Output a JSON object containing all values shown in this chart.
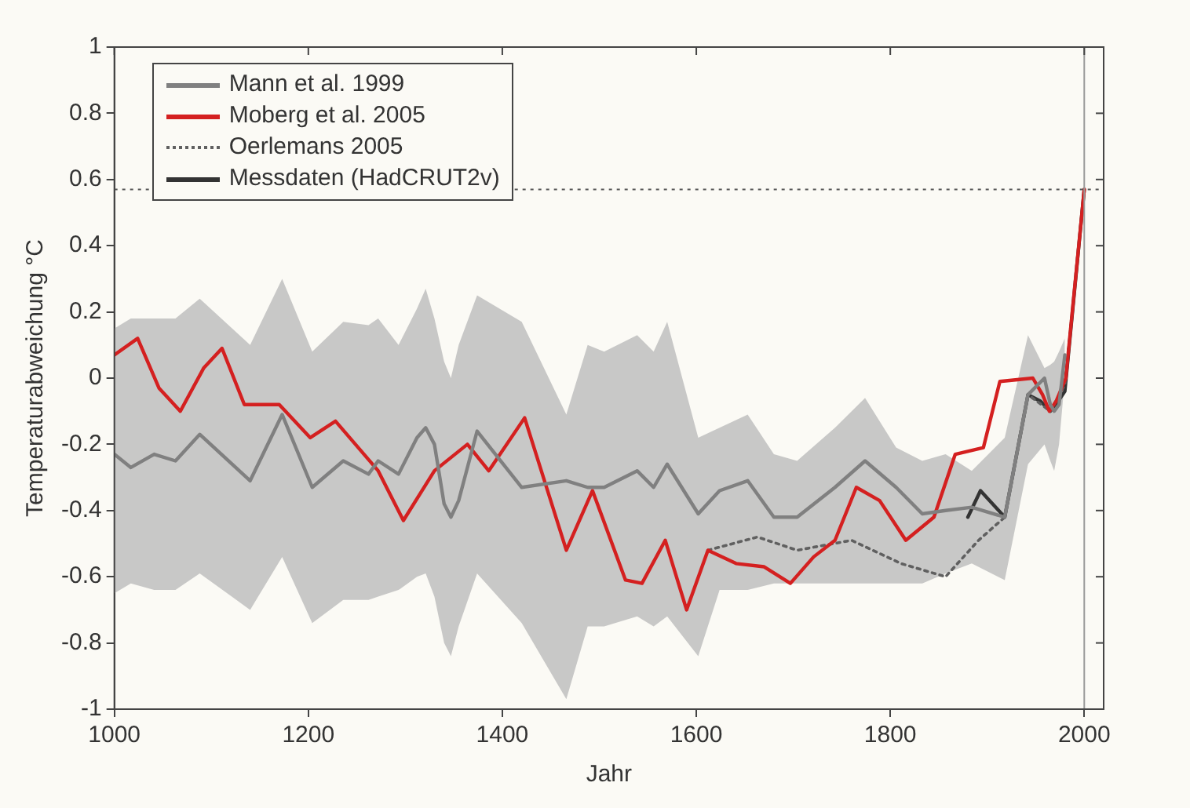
{
  "chart_data": {
    "type": "line",
    "xlabel": "Jahr",
    "ylabel": "Temperaturabweichung °C",
    "xlim": [
      1000,
      2020
    ],
    "ylim": [
      -1,
      1
    ],
    "xticks": [
      1000,
      1200,
      1400,
      1600,
      1800,
      2000
    ],
    "yticks": [
      -1,
      -0.8,
      -0.6,
      -0.4,
      -0.2,
      0,
      0.2,
      0.4,
      0.6,
      0.8,
      1
    ],
    "grid": false,
    "legend": "top left",
    "marker": "none",
    "ref_lines": [
      {
        "axis": "y",
        "value": 0.57,
        "color": "#555555",
        "line_style": "dotted"
      },
      {
        "axis": "x",
        "value": 2000,
        "color": "#999999",
        "line_style": "solid"
      }
    ],
    "series": [
      {
        "name": "Mann et al. 1999",
        "color": "#808080",
        "line_style": "solid",
        "x": [
          1000,
          1017,
          1041,
          1063,
          1088,
          1140,
          1173,
          1204,
          1236,
          1262,
          1272,
          1293,
          1312,
          1321,
          1330,
          1340,
          1347,
          1355,
          1374,
          1420,
          1466,
          1488,
          1505,
          1539,
          1556,
          1570,
          1602,
          1624,
          1653,
          1680,
          1704,
          1743,
          1774,
          1806,
          1833,
          1857,
          1884,
          1918,
          1942,
          1959,
          1965,
          1969,
          1974,
          1980
        ],
        "values": [
          -0.23,
          -0.27,
          -0.23,
          -0.25,
          -0.17,
          -0.31,
          -0.11,
          -0.33,
          -0.25,
          -0.29,
          -0.25,
          -0.29,
          -0.18,
          -0.15,
          -0.2,
          -0.38,
          -0.42,
          -0.37,
          -0.16,
          -0.33,
          -0.31,
          -0.33,
          -0.33,
          -0.28,
          -0.33,
          -0.26,
          -0.41,
          -0.34,
          -0.31,
          -0.42,
          -0.42,
          -0.33,
          -0.25,
          -0.33,
          -0.41,
          -0.4,
          -0.39,
          -0.42,
          -0.05,
          0,
          -0.08,
          -0.1,
          -0.08,
          0.07
        ],
        "upper": [
          0.15,
          0.18,
          0.18,
          0.18,
          0.24,
          0.1,
          0.3,
          0.08,
          0.17,
          0.16,
          0.18,
          0.1,
          0.21,
          0.27,
          0.18,
          0.05,
          0,
          0.1,
          0.25,
          0.17,
          -0.11,
          0.1,
          0.08,
          0.13,
          0.08,
          0.17,
          -0.18,
          -0.15,
          -0.11,
          -0.23,
          -0.25,
          -0.15,
          -0.06,
          -0.21,
          -0.25,
          -0.23,
          -0.28,
          -0.18,
          0.13,
          0.03,
          0.04,
          0.05,
          0.08,
          0.12
        ],
        "lower": [
          -0.65,
          -0.62,
          -0.64,
          -0.64,
          -0.59,
          -0.7,
          -0.54,
          -0.74,
          -0.67,
          -0.67,
          -0.66,
          -0.64,
          -0.6,
          -0.59,
          -0.66,
          -0.8,
          -0.84,
          -0.75,
          -0.59,
          -0.74,
          -0.97,
          -0.75,
          -0.75,
          -0.72,
          -0.75,
          -0.72,
          -0.84,
          -0.64,
          -0.64,
          -0.62,
          -0.62,
          -0.62,
          -0.62,
          -0.62,
          -0.62,
          -0.59,
          -0.56,
          -0.61,
          -0.26,
          -0.2,
          -0.25,
          -0.28,
          -0.2,
          0
        ]
      },
      {
        "name": "Moberg et al. 2005",
        "color": "#d42020",
        "line_style": "solid",
        "x": [
          1000,
          1024,
          1046,
          1068,
          1092,
          1111,
          1134,
          1170,
          1202,
          1228,
          1272,
          1298,
          1330,
          1364,
          1386,
          1423,
          1466,
          1493,
          1527,
          1544,
          1568,
          1590,
          1612,
          1641,
          1670,
          1697,
          1721,
          1743,
          1765,
          1789,
          1816,
          1845,
          1867,
          1896,
          1913,
          1947,
          1957,
          1964,
          1971,
          1981,
          2000
        ],
        "values": [
          0.07,
          0.12,
          -0.03,
          -0.1,
          0.03,
          0.09,
          -0.08,
          -0.08,
          -0.18,
          -0.13,
          -0.28,
          -0.43,
          -0.28,
          -0.2,
          -0.28,
          -0.12,
          -0.52,
          -0.34,
          -0.61,
          -0.62,
          -0.49,
          -0.7,
          -0.52,
          -0.56,
          -0.57,
          -0.62,
          -0.54,
          -0.49,
          -0.33,
          -0.37,
          -0.49,
          -0.42,
          -0.23,
          -0.21,
          -0.01,
          0,
          -0.05,
          -0.1,
          -0.07,
          0,
          0.57
        ]
      },
      {
        "name": "Oerlemans 2005",
        "color": "#606060",
        "line_style": "dotted",
        "x": [
          1612,
          1663,
          1704,
          1760,
          1811,
          1857,
          1891,
          1918,
          1942,
          1965,
          1980,
          2000
        ],
        "values": [
          -0.52,
          -0.48,
          -0.52,
          -0.49,
          -0.56,
          -0.6,
          -0.49,
          -0.42,
          -0.05,
          -0.1,
          -0.02,
          0.57
        ]
      },
      {
        "name": "Messdaten (HadCRUT2v)",
        "color": "#333333",
        "line_style": "solid",
        "x": [
          1880,
          1893,
          1918,
          1942,
          1955,
          1965,
          1973,
          1980,
          2000
        ],
        "values": [
          -0.42,
          -0.34,
          -0.42,
          -0.05,
          -0.07,
          -0.1,
          -0.07,
          -0.04,
          0.57
        ]
      }
    ]
  }
}
